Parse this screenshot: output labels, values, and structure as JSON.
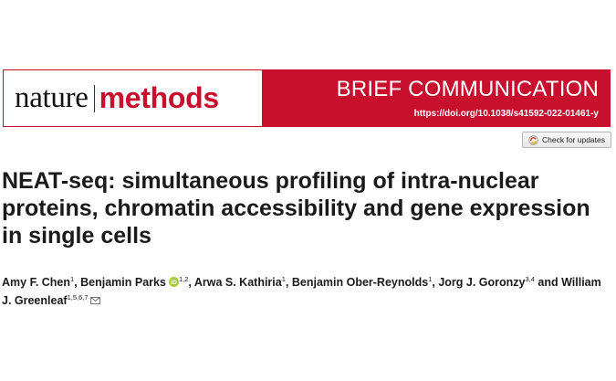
{
  "journal": {
    "name_part1": "nature",
    "name_part2": "methods",
    "brand_color": "#c8102e"
  },
  "article_type": "BRIEF COMMUNICATION",
  "doi": "https://doi.org/10.1038/s41592-022-01461-y",
  "check_updates_label": "Check for updates",
  "title": "NEAT-seq: simultaneous profiling of intra-nuclear proteins, chromatin accessibility and gene expression in single cells",
  "authors": [
    {
      "name": "Amy F. Chen",
      "affil": "1",
      "sep": ", "
    },
    {
      "name": "Benjamin Parks",
      "affil": "1,2",
      "orcid": true,
      "sep": ", "
    },
    {
      "name": "Arwa S. Kathiria",
      "affil": "1",
      "sep": ", "
    },
    {
      "name": "Benjamin Ober-Reynolds",
      "affil": "1",
      "sep": ", "
    },
    {
      "name": "Jorg J. Goronzy",
      "affil": "3,4",
      "sep": " and "
    },
    {
      "name": "William J. Greenleaf",
      "affil": "1,5,6,7",
      "email": true,
      "sep": ""
    }
  ],
  "icons": {
    "orcid": "orcid-icon",
    "email": "email-icon",
    "updates": "check-for-updates-icon"
  }
}
